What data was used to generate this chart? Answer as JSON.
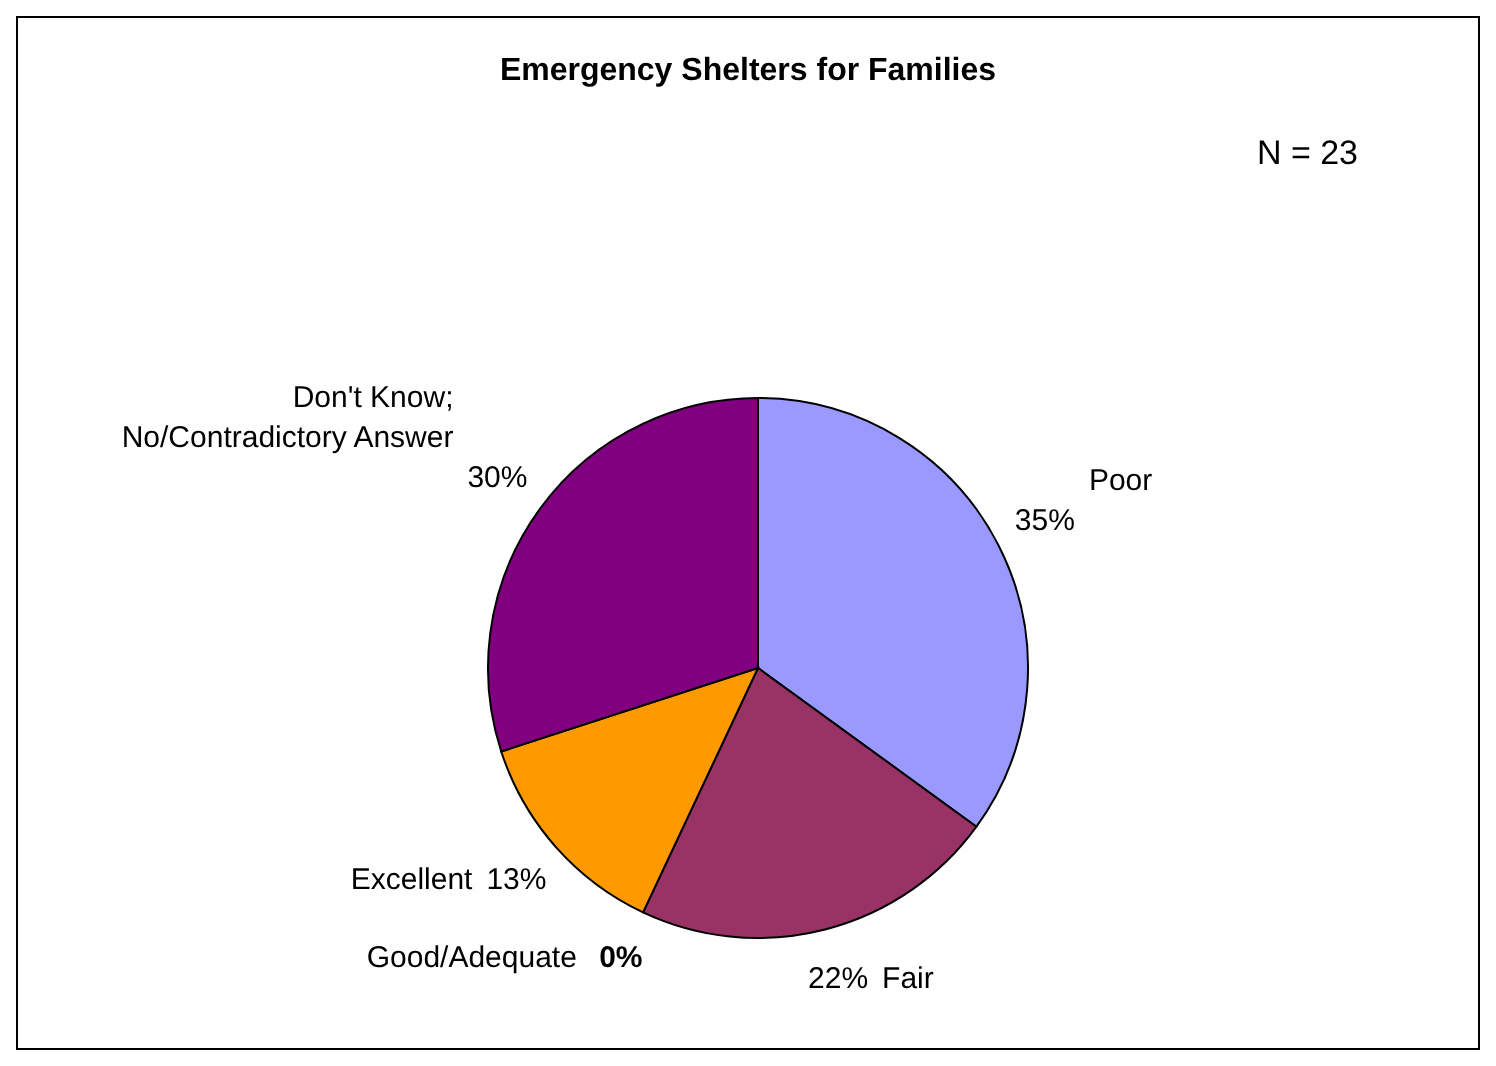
{
  "chart_data": {
    "type": "pie",
    "title": "Emergency Shelters for Families",
    "categories": [
      "Poor",
      "Fair",
      "Good/Adequate",
      "Excellent",
      "Don't Know; No/Contradictory Answer"
    ],
    "values": [
      35,
      22,
      0,
      13,
      30
    ],
    "value_labels": [
      "35%",
      "22%",
      "0%",
      "13%",
      "30%"
    ],
    "colors": [
      "#9999ff",
      "#993366",
      "#ffffcc",
      "#ff9900",
      "#800080"
    ],
    "annotations": [
      "N = 23"
    ],
    "legend": false
  }
}
